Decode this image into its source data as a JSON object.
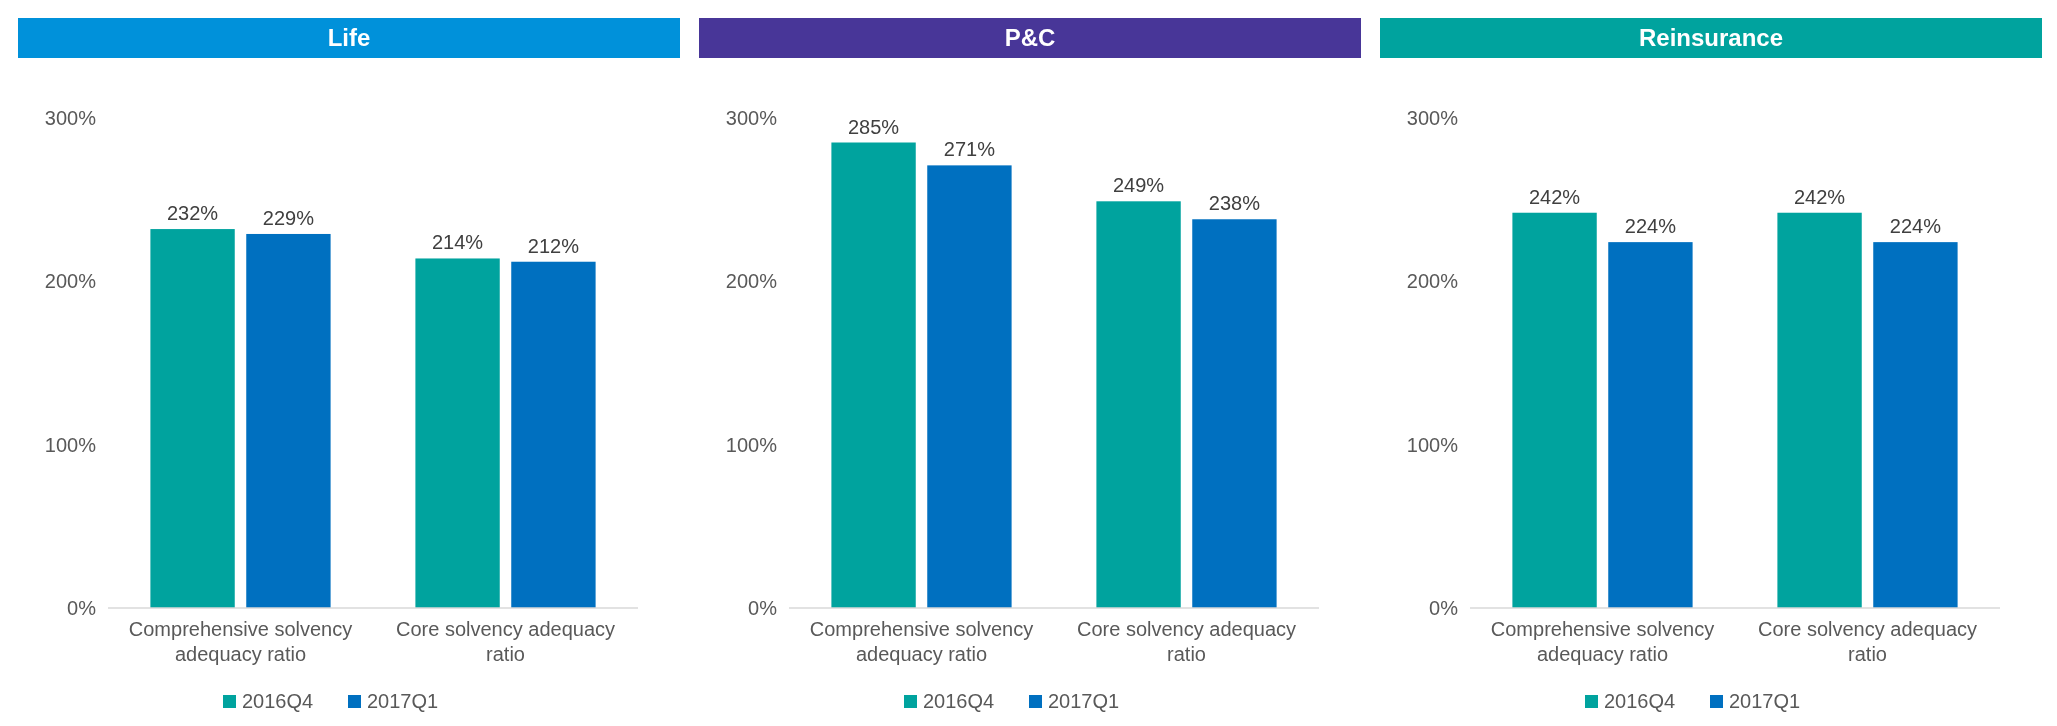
{
  "chart_data": [
    {
      "type": "bar",
      "title": "Life",
      "categories": [
        "Comprehensive solvency adequacy ratio",
        "Core solvency adequacy ratio"
      ],
      "ylim": [
        0,
        300
      ],
      "yticks": [
        {
          "value": 0,
          "label": "0%"
        },
        {
          "value": 100,
          "label": "100%"
        },
        {
          "value": 200,
          "label": "200%"
        },
        {
          "value": 300,
          "label": "300%"
        }
      ],
      "grid": false,
      "legend": "bottom",
      "series": [
        {
          "name": "2016Q4",
          "color": "#00a39e",
          "values": [
            232,
            214
          ],
          "value_labels": [
            "232%",
            "214%"
          ]
        },
        {
          "name": "2017Q1",
          "color": "#0070c0",
          "values": [
            229,
            212
          ],
          "value_labels": [
            "229%",
            "212%"
          ]
        }
      ]
    },
    {
      "type": "bar",
      "title": "P&C",
      "categories": [
        "Comprehensive solvency adequacy ratio",
        "Core solvency adequacy ratio"
      ],
      "ylim": [
        0,
        300
      ],
      "yticks": [
        {
          "value": 0,
          "label": "0%"
        },
        {
          "value": 100,
          "label": "100%"
        },
        {
          "value": 200,
          "label": "200%"
        },
        {
          "value": 300,
          "label": "300%"
        }
      ],
      "grid": false,
      "legend": "bottom",
      "series": [
        {
          "name": "2016Q4",
          "color": "#00a39e",
          "values": [
            285,
            249
          ],
          "value_labels": [
            "285%",
            "249%"
          ]
        },
        {
          "name": "2017Q1",
          "color": "#0070c0",
          "values": [
            271,
            238
          ],
          "value_labels": [
            "271%",
            "238%"
          ]
        }
      ]
    },
    {
      "type": "bar",
      "title": "Reinsurance",
      "categories": [
        "Comprehensive solvency adequacy ratio",
        "Core solvency adequacy ratio"
      ],
      "ylim": [
        0,
        300
      ],
      "yticks": [
        {
          "value": 0,
          "label": "0%"
        },
        {
          "value": 100,
          "label": "100%"
        },
        {
          "value": 200,
          "label": "200%"
        },
        {
          "value": 300,
          "label": "300%"
        }
      ],
      "grid": false,
      "legend": "bottom",
      "series": [
        {
          "name": "2016Q4",
          "color": "#00a39e",
          "values": [
            242,
            242
          ],
          "value_labels": [
            "242%",
            "242%"
          ]
        },
        {
          "name": "2017Q1",
          "color": "#0070c0",
          "values": [
            224,
            224
          ],
          "value_labels": [
            "224%",
            "224%"
          ]
        }
      ]
    }
  ]
}
